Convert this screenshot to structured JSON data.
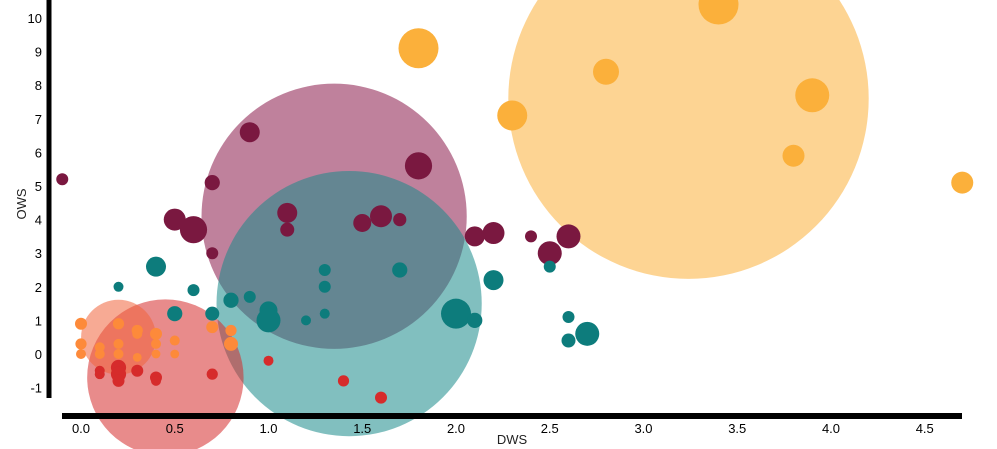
{
  "chart_data": {
    "type": "scatter",
    "subtype": "bubble",
    "xlabel": "DWS",
    "ylabel": "OWS",
    "xlim": [
      -0.1,
      4.75
    ],
    "ylim": [
      -1.4,
      10.6
    ],
    "x_ticks": [
      "0.0",
      "0.5",
      "1.0",
      "1.5",
      "2.0",
      "2.5",
      "3.0",
      "3.5",
      "4.0",
      "4.5"
    ],
    "y_ticks": [
      "-1",
      "0",
      "1",
      "2",
      "3",
      "4",
      "5",
      "6",
      "7",
      "8",
      "9",
      "10"
    ],
    "grid": false,
    "legend": "none",
    "cluster_summaries": [
      {
        "color": "#fbb03b",
        "opacity": 0.55,
        "x": 3.24,
        "y": 7.6,
        "r": 5.3
      },
      {
        "color": "#8b1a4a",
        "opacity": 0.55,
        "x": 1.35,
        "y": 4.1,
        "r": 3.9
      },
      {
        "color": "#1a8a8a",
        "opacity": 0.55,
        "x": 1.43,
        "y": 1.5,
        "r": 3.9
      },
      {
        "color": "#d62b2b",
        "opacity": 0.55,
        "x": 0.45,
        "y": -0.7,
        "r": 2.3
      },
      {
        "color": "#f0643c",
        "opacity": 0.55,
        "x": 0.2,
        "y": 0.5,
        "r": 1.1
      }
    ],
    "series": [
      {
        "color": "#fbb03b",
        "points": [
          {
            "x": 3.4,
            "y": 10.4,
            "s": 1.0
          },
          {
            "x": 1.8,
            "y": 9.1,
            "s": 1.0
          },
          {
            "x": 2.8,
            "y": 8.4,
            "s": 0.65
          },
          {
            "x": 3.9,
            "y": 7.7,
            "s": 0.85
          },
          {
            "x": 2.3,
            "y": 7.1,
            "s": 0.75
          },
          {
            "x": 3.8,
            "y": 5.9,
            "s": 0.55
          },
          {
            "x": 4.7,
            "y": 5.1,
            "s": 0.55
          }
        ]
      },
      {
        "color": "#7a1840",
        "points": [
          {
            "x": -0.1,
            "y": 5.2,
            "s": 0.3
          },
          {
            "x": 0.9,
            "y": 6.6,
            "s": 0.5
          },
          {
            "x": 0.7,
            "y": 5.1,
            "s": 0.38
          },
          {
            "x": 1.8,
            "y": 5.6,
            "s": 0.68
          },
          {
            "x": 0.5,
            "y": 4.0,
            "s": 0.55
          },
          {
            "x": 0.6,
            "y": 3.7,
            "s": 0.68
          },
          {
            "x": 1.1,
            "y": 4.2,
            "s": 0.5
          },
          {
            "x": 1.1,
            "y": 3.7,
            "s": 0.35
          },
          {
            "x": 1.5,
            "y": 3.9,
            "s": 0.45
          },
          {
            "x": 1.6,
            "y": 4.1,
            "s": 0.55
          },
          {
            "x": 1.7,
            "y": 4.0,
            "s": 0.33
          },
          {
            "x": 2.1,
            "y": 3.5,
            "s": 0.5
          },
          {
            "x": 2.2,
            "y": 3.6,
            "s": 0.55
          },
          {
            "x": 2.4,
            "y": 3.5,
            "s": 0.3
          },
          {
            "x": 2.5,
            "y": 3.0,
            "s": 0.6
          },
          {
            "x": 2.6,
            "y": 3.5,
            "s": 0.6
          },
          {
            "x": 0.7,
            "y": 3.0,
            "s": 0.3
          }
        ]
      },
      {
        "color": "#0d7c7c",
        "points": [
          {
            "x": 0.4,
            "y": 2.6,
            "s": 0.5
          },
          {
            "x": 0.2,
            "y": 2.0,
            "s": 0.25
          },
          {
            "x": 0.6,
            "y": 1.9,
            "s": 0.3
          },
          {
            "x": 0.8,
            "y": 1.6,
            "s": 0.38
          },
          {
            "x": 0.9,
            "y": 1.7,
            "s": 0.3
          },
          {
            "x": 0.5,
            "y": 1.2,
            "s": 0.38
          },
          {
            "x": 0.7,
            "y": 1.2,
            "s": 0.35
          },
          {
            "x": 1.0,
            "y": 1.3,
            "s": 0.45
          },
          {
            "x": 1.0,
            "y": 1.0,
            "s": 0.6
          },
          {
            "x": 1.2,
            "y": 1.0,
            "s": 0.25
          },
          {
            "x": 1.3,
            "y": 2.5,
            "s": 0.3
          },
          {
            "x": 1.3,
            "y": 2.0,
            "s": 0.3
          },
          {
            "x": 1.3,
            "y": 1.2,
            "s": 0.25
          },
          {
            "x": 1.7,
            "y": 2.5,
            "s": 0.38
          },
          {
            "x": 2.0,
            "y": 1.2,
            "s": 0.75
          },
          {
            "x": 2.1,
            "y": 1.0,
            "s": 0.38
          },
          {
            "x": 2.2,
            "y": 2.2,
            "s": 0.5
          },
          {
            "x": 2.5,
            "y": 2.6,
            "s": 0.3
          },
          {
            "x": 2.6,
            "y": 1.1,
            "s": 0.3
          },
          {
            "x": 2.6,
            "y": 0.4,
            "s": 0.35
          },
          {
            "x": 2.7,
            "y": 0.6,
            "s": 0.6
          }
        ]
      },
      {
        "color": "#d62b2b",
        "points": [
          {
            "x": 0.1,
            "y": -0.5,
            "s": 0.25
          },
          {
            "x": 0.1,
            "y": -0.6,
            "s": 0.25
          },
          {
            "x": 0.2,
            "y": -0.4,
            "s": 0.38
          },
          {
            "x": 0.2,
            "y": -0.6,
            "s": 0.38
          },
          {
            "x": 0.2,
            "y": -0.8,
            "s": 0.3
          },
          {
            "x": 0.3,
            "y": -0.5,
            "s": 0.3
          },
          {
            "x": 0.4,
            "y": -0.7,
            "s": 0.3
          },
          {
            "x": 0.4,
            "y": -0.8,
            "s": 0.25
          },
          {
            "x": 0.7,
            "y": -0.6,
            "s": 0.28
          },
          {
            "x": 1.0,
            "y": -0.2,
            "s": 0.25
          },
          {
            "x": 1.4,
            "y": -0.8,
            "s": 0.28
          },
          {
            "x": 1.6,
            "y": -1.3,
            "s": 0.3
          }
        ]
      },
      {
        "color": "#fd8a3a",
        "points": [
          {
            "x": 0.0,
            "y": 0.9,
            "s": 0.3
          },
          {
            "x": 0.0,
            "y": 0.3,
            "s": 0.28
          },
          {
            "x": 0.0,
            "y": 0.0,
            "s": 0.25
          },
          {
            "x": 0.1,
            "y": 0.2,
            "s": 0.25
          },
          {
            "x": 0.1,
            "y": 0.0,
            "s": 0.25
          },
          {
            "x": 0.2,
            "y": 0.9,
            "s": 0.28
          },
          {
            "x": 0.2,
            "y": 0.3,
            "s": 0.25
          },
          {
            "x": 0.2,
            "y": 0.0,
            "s": 0.25
          },
          {
            "x": 0.3,
            "y": 0.7,
            "s": 0.28
          },
          {
            "x": 0.3,
            "y": 0.6,
            "s": 0.25
          },
          {
            "x": 0.3,
            "y": -0.1,
            "s": 0.22
          },
          {
            "x": 0.4,
            "y": 0.6,
            "s": 0.3
          },
          {
            "x": 0.4,
            "y": 0.3,
            "s": 0.25
          },
          {
            "x": 0.4,
            "y": 0.0,
            "s": 0.22
          },
          {
            "x": 0.5,
            "y": 0.4,
            "s": 0.25
          },
          {
            "x": 0.5,
            "y": 0.0,
            "s": 0.22
          },
          {
            "x": 0.7,
            "y": 0.8,
            "s": 0.3
          },
          {
            "x": 0.8,
            "y": 0.7,
            "s": 0.28
          },
          {
            "x": 0.8,
            "y": 0.3,
            "s": 0.35
          }
        ]
      }
    ]
  }
}
